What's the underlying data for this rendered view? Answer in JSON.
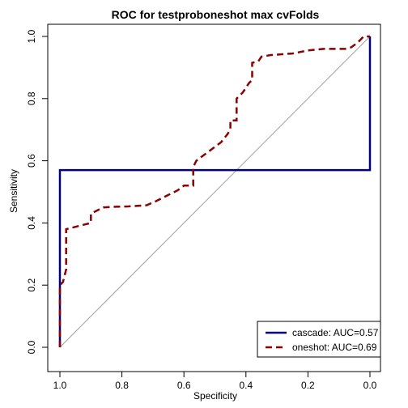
{
  "chart_data": {
    "type": "line",
    "title": "ROC for testproboneshot max cvFolds",
    "xlabel": "Specificity",
    "ylabel": "Sensitivity",
    "xlim": [
      1.0,
      0.0
    ],
    "ylim": [
      0.0,
      1.0
    ],
    "x_ticks": [
      "1.0",
      "0.8",
      "0.6",
      "0.4",
      "0.2",
      "0.0"
    ],
    "x_tick_values": [
      1.0,
      0.8,
      0.6,
      0.4,
      0.2,
      0.0
    ],
    "y_ticks": [
      "0.0",
      "0.2",
      "0.4",
      "0.6",
      "0.8",
      "1.0"
    ],
    "y_tick_values": [
      0.0,
      0.2,
      0.4,
      0.6,
      0.8,
      1.0
    ],
    "grid": false,
    "legend_position": "bottom-right",
    "reference_line": {
      "from": [
        1.0,
        0.0
      ],
      "to": [
        0.0,
        1.0
      ],
      "color": "#a0a0a0"
    },
    "series": [
      {
        "name": "cascade: AUC=0.57",
        "color": "#000080",
        "style": "solid",
        "points": [
          [
            1.0,
            0.0
          ],
          [
            1.0,
            0.57
          ],
          [
            0.0,
            0.57
          ],
          [
            0.0,
            1.0
          ]
        ]
      },
      {
        "name": "oneshot: AUC=0.69",
        "color": "#8b0000",
        "style": "dashed",
        "points": [
          [
            1.0,
            0.0
          ],
          [
            1.0,
            0.2
          ],
          [
            0.99,
            0.21
          ],
          [
            0.985,
            0.23
          ],
          [
            0.98,
            0.25
          ],
          [
            0.98,
            0.38
          ],
          [
            0.96,
            0.385
          ],
          [
            0.94,
            0.39
          ],
          [
            0.9,
            0.4
          ],
          [
            0.9,
            0.43
          ],
          [
            0.88,
            0.44
          ],
          [
            0.86,
            0.45
          ],
          [
            0.82,
            0.452
          ],
          [
            0.78,
            0.453
          ],
          [
            0.72,
            0.457
          ],
          [
            0.69,
            0.47
          ],
          [
            0.65,
            0.49
          ],
          [
            0.62,
            0.505
          ],
          [
            0.6,
            0.52
          ],
          [
            0.57,
            0.52
          ],
          [
            0.57,
            0.58
          ],
          [
            0.56,
            0.6
          ],
          [
            0.52,
            0.63
          ],
          [
            0.48,
            0.66
          ],
          [
            0.46,
            0.685
          ],
          [
            0.45,
            0.7
          ],
          [
            0.45,
            0.73
          ],
          [
            0.43,
            0.73
          ],
          [
            0.43,
            0.8
          ],
          [
            0.41,
            0.82
          ],
          [
            0.4,
            0.835
          ],
          [
            0.39,
            0.85
          ],
          [
            0.38,
            0.86
          ],
          [
            0.38,
            0.915
          ],
          [
            0.36,
            0.92
          ],
          [
            0.35,
            0.935
          ],
          [
            0.32,
            0.94
          ],
          [
            0.25,
            0.945
          ],
          [
            0.2,
            0.955
          ],
          [
            0.15,
            0.96
          ],
          [
            0.08,
            0.96
          ],
          [
            0.06,
            0.965
          ],
          [
            0.04,
            0.98
          ],
          [
            0.02,
            1.0
          ],
          [
            0.0,
            1.0
          ]
        ]
      }
    ]
  }
}
